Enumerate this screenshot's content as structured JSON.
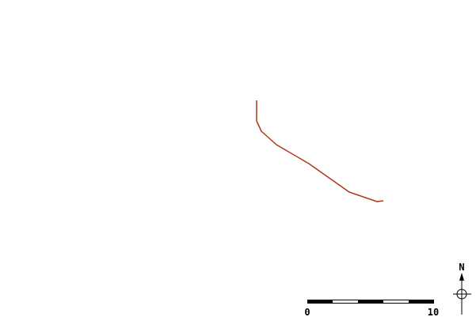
{
  "north_arrow": {
    "label": "N"
  },
  "scale_bar": {
    "start_label": "0",
    "end_label": "10"
  }
}
